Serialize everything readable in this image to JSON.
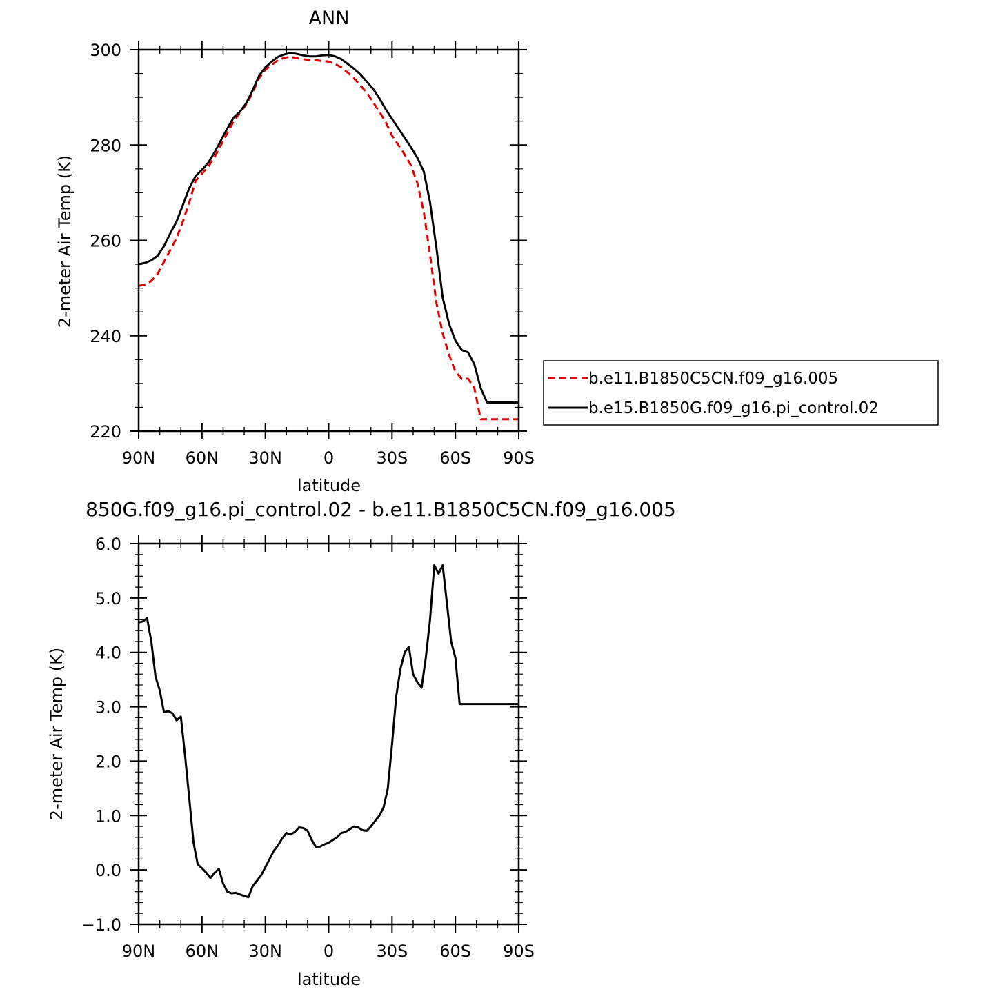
{
  "chart_data": [
    {
      "type": "line",
      "title": "ANN",
      "xlabel": "latitude",
      "ylabel": "2-meter Air Temp (K)",
      "xlim": [
        90,
        -90
      ],
      "ylim": [
        220,
        300
      ],
      "x_ticks": [
        90,
        60,
        30,
        0,
        -30,
        -60,
        -90
      ],
      "x_tick_labels": [
        "90N",
        "60N",
        "30N",
        "0",
        "30S",
        "60S",
        "90S"
      ],
      "y_ticks": [
        220,
        240,
        260,
        280,
        300
      ],
      "y_tick_labels": [
        "220",
        "240",
        "260",
        "280",
        "300"
      ],
      "legend_position": "right",
      "series": [
        {
          "name": "b.e11.B1850C5CN.f09_g16.005",
          "color": "#e00000",
          "style": "dashed",
          "x": [
            90,
            87,
            84,
            81,
            78,
            75,
            72,
            69,
            66,
            63,
            60,
            57,
            54,
            51,
            48,
            45,
            42,
            39,
            36,
            33,
            30,
            27,
            24,
            21,
            18,
            15,
            12,
            9,
            6,
            3,
            0,
            -3,
            -6,
            -9,
            -12,
            -15,
            -18,
            -21,
            -24,
            -27,
            -30,
            -33,
            -36,
            -39,
            -42,
            -45,
            -48,
            -51,
            -54,
            -57,
            -60,
            -63,
            -66,
            -69,
            -72,
            -75,
            -78,
            -81,
            -84,
            -87,
            -90
          ],
          "y": [
            250.5,
            250.7,
            251.5,
            253.0,
            255.5,
            258.0,
            260.5,
            264.0,
            268.0,
            272.5,
            274.0,
            275.5,
            277.5,
            280.0,
            282.5,
            285.0,
            286.8,
            288.5,
            291.0,
            294.0,
            295.8,
            296.8,
            297.8,
            298.3,
            298.5,
            298.2,
            298.0,
            297.8,
            297.8,
            297.6,
            297.5,
            297.0,
            296.3,
            295.2,
            294.0,
            292.5,
            291.0,
            289.0,
            287.0,
            284.8,
            282.0,
            280.0,
            278.0,
            275.7,
            272.0,
            266.0,
            257.0,
            247.0,
            240.5,
            236.0,
            232.5,
            231.0,
            231.0,
            229.0,
            222.5,
            222.5,
            222.5,
            222.5,
            222.5,
            222.5,
            222.5
          ]
        },
        {
          "name": "b.e15.B1850G.f09_g16.pi_control.02",
          "color": "#000000",
          "style": "solid",
          "x": [
            90,
            87,
            84,
            81,
            78,
            75,
            72,
            69,
            66,
            63,
            60,
            57,
            54,
            51,
            48,
            45,
            42,
            39,
            36,
            33,
            30,
            27,
            24,
            21,
            18,
            15,
            12,
            9,
            6,
            3,
            0,
            -3,
            -6,
            -9,
            -12,
            -15,
            -18,
            -21,
            -24,
            -27,
            -30,
            -33,
            -36,
            -39,
            -42,
            -45,
            -48,
            -51,
            -54,
            -57,
            -60,
            -63,
            -66,
            -69,
            -72,
            -75,
            -78,
            -81,
            -84,
            -87,
            -90
          ],
          "y": [
            255.0,
            255.3,
            255.8,
            256.8,
            258.8,
            261.5,
            264.0,
            267.5,
            271.0,
            273.5,
            274.8,
            276.3,
            278.5,
            281.0,
            283.5,
            285.8,
            287.0,
            288.8,
            291.5,
            294.5,
            296.3,
            297.5,
            298.5,
            299.0,
            299.3,
            299.1,
            298.8,
            298.6,
            298.6,
            298.8,
            298.9,
            298.6,
            298.0,
            297.0,
            296.0,
            294.8,
            293.3,
            291.8,
            289.8,
            287.5,
            285.5,
            283.5,
            281.5,
            279.5,
            277.3,
            274.5,
            268.0,
            258.5,
            248.0,
            242.5,
            239.0,
            237.0,
            236.5,
            234.0,
            229.0,
            226.0,
            226.0,
            226.0,
            226.0,
            226.0,
            226.0
          ]
        }
      ]
    },
    {
      "type": "line",
      "title": "850G.f09_g16.pi_control.02 - b.e11.B1850C5CN.f09_g16.005",
      "xlabel": "latitude",
      "ylabel": "2-meter Air Temp (K)",
      "xlim": [
        90,
        -90
      ],
      "ylim": [
        -1.0,
        6.0
      ],
      "x_ticks": [
        90,
        60,
        30,
        0,
        -30,
        -60,
        -90
      ],
      "x_tick_labels": [
        "90N",
        "60N",
        "30N",
        "0",
        "30S",
        "60S",
        "90S"
      ],
      "y_ticks": [
        -1.0,
        0.0,
        1.0,
        2.0,
        3.0,
        4.0,
        5.0,
        6.0
      ],
      "y_tick_labels": [
        "-1.0",
        "0.0",
        "1.0",
        "2.0",
        "3.0",
        "4.0",
        "5.0",
        "6.0"
      ],
      "series": [
        {
          "name": "",
          "color": "#000000",
          "style": "solid",
          "x": [
            90,
            88,
            86,
            84,
            82,
            80,
            78,
            76,
            74,
            72,
            70,
            68,
            66,
            64,
            62,
            60,
            58,
            56,
            54,
            52,
            50,
            48,
            46,
            44,
            42,
            40,
            38,
            36,
            34,
            32,
            30,
            28,
            26,
            24,
            22,
            20,
            18,
            16,
            14,
            12,
            10,
            8,
            6,
            4,
            2,
            0,
            -2,
            -4,
            -6,
            -8,
            -10,
            -12,
            -14,
            -16,
            -18,
            -20,
            -22,
            -24,
            -26,
            -28,
            -30,
            -32,
            -34,
            -36,
            -38,
            -40,
            -42,
            -44,
            -46,
            -48,
            -50,
            -52,
            -54,
            -56,
            -58,
            -60,
            -62,
            -64,
            -66,
            -68,
            -70,
            -72,
            -74,
            -76,
            -78,
            -80,
            -81,
            -82,
            -83,
            -84,
            -86,
            -88,
            -90
          ],
          "y": [
            4.55,
            4.57,
            4.63,
            4.2,
            3.55,
            3.3,
            2.9,
            2.92,
            2.88,
            2.75,
            2.82,
            2.1,
            1.3,
            0.5,
            0.1,
            0.03,
            -0.05,
            -0.15,
            -0.05,
            0.02,
            -0.25,
            -0.4,
            -0.43,
            -0.42,
            -0.45,
            -0.48,
            -0.5,
            -0.3,
            -0.2,
            -0.1,
            0.05,
            0.2,
            0.35,
            0.45,
            0.58,
            0.68,
            0.65,
            0.7,
            0.78,
            0.77,
            0.72,
            0.55,
            0.42,
            0.43,
            0.47,
            0.5,
            0.55,
            0.6,
            0.68,
            0.7,
            0.75,
            0.8,
            0.78,
            0.73,
            0.72,
            0.8,
            0.9,
            1.0,
            1.15,
            1.5,
            2.3,
            3.2,
            3.7,
            4.0,
            4.1,
            3.6,
            3.45,
            3.35,
            3.9,
            4.6,
            5.6,
            5.45,
            5.6,
            4.9,
            4.2,
            3.9,
            3.05,
            3.05,
            3.05,
            3.05,
            3.05,
            3.05,
            3.05,
            3.05,
            3.05,
            3.05,
            3.05,
            3.05,
            3.05,
            3.05,
            3.05,
            3.05,
            3.05
          ]
        }
      ]
    }
  ]
}
